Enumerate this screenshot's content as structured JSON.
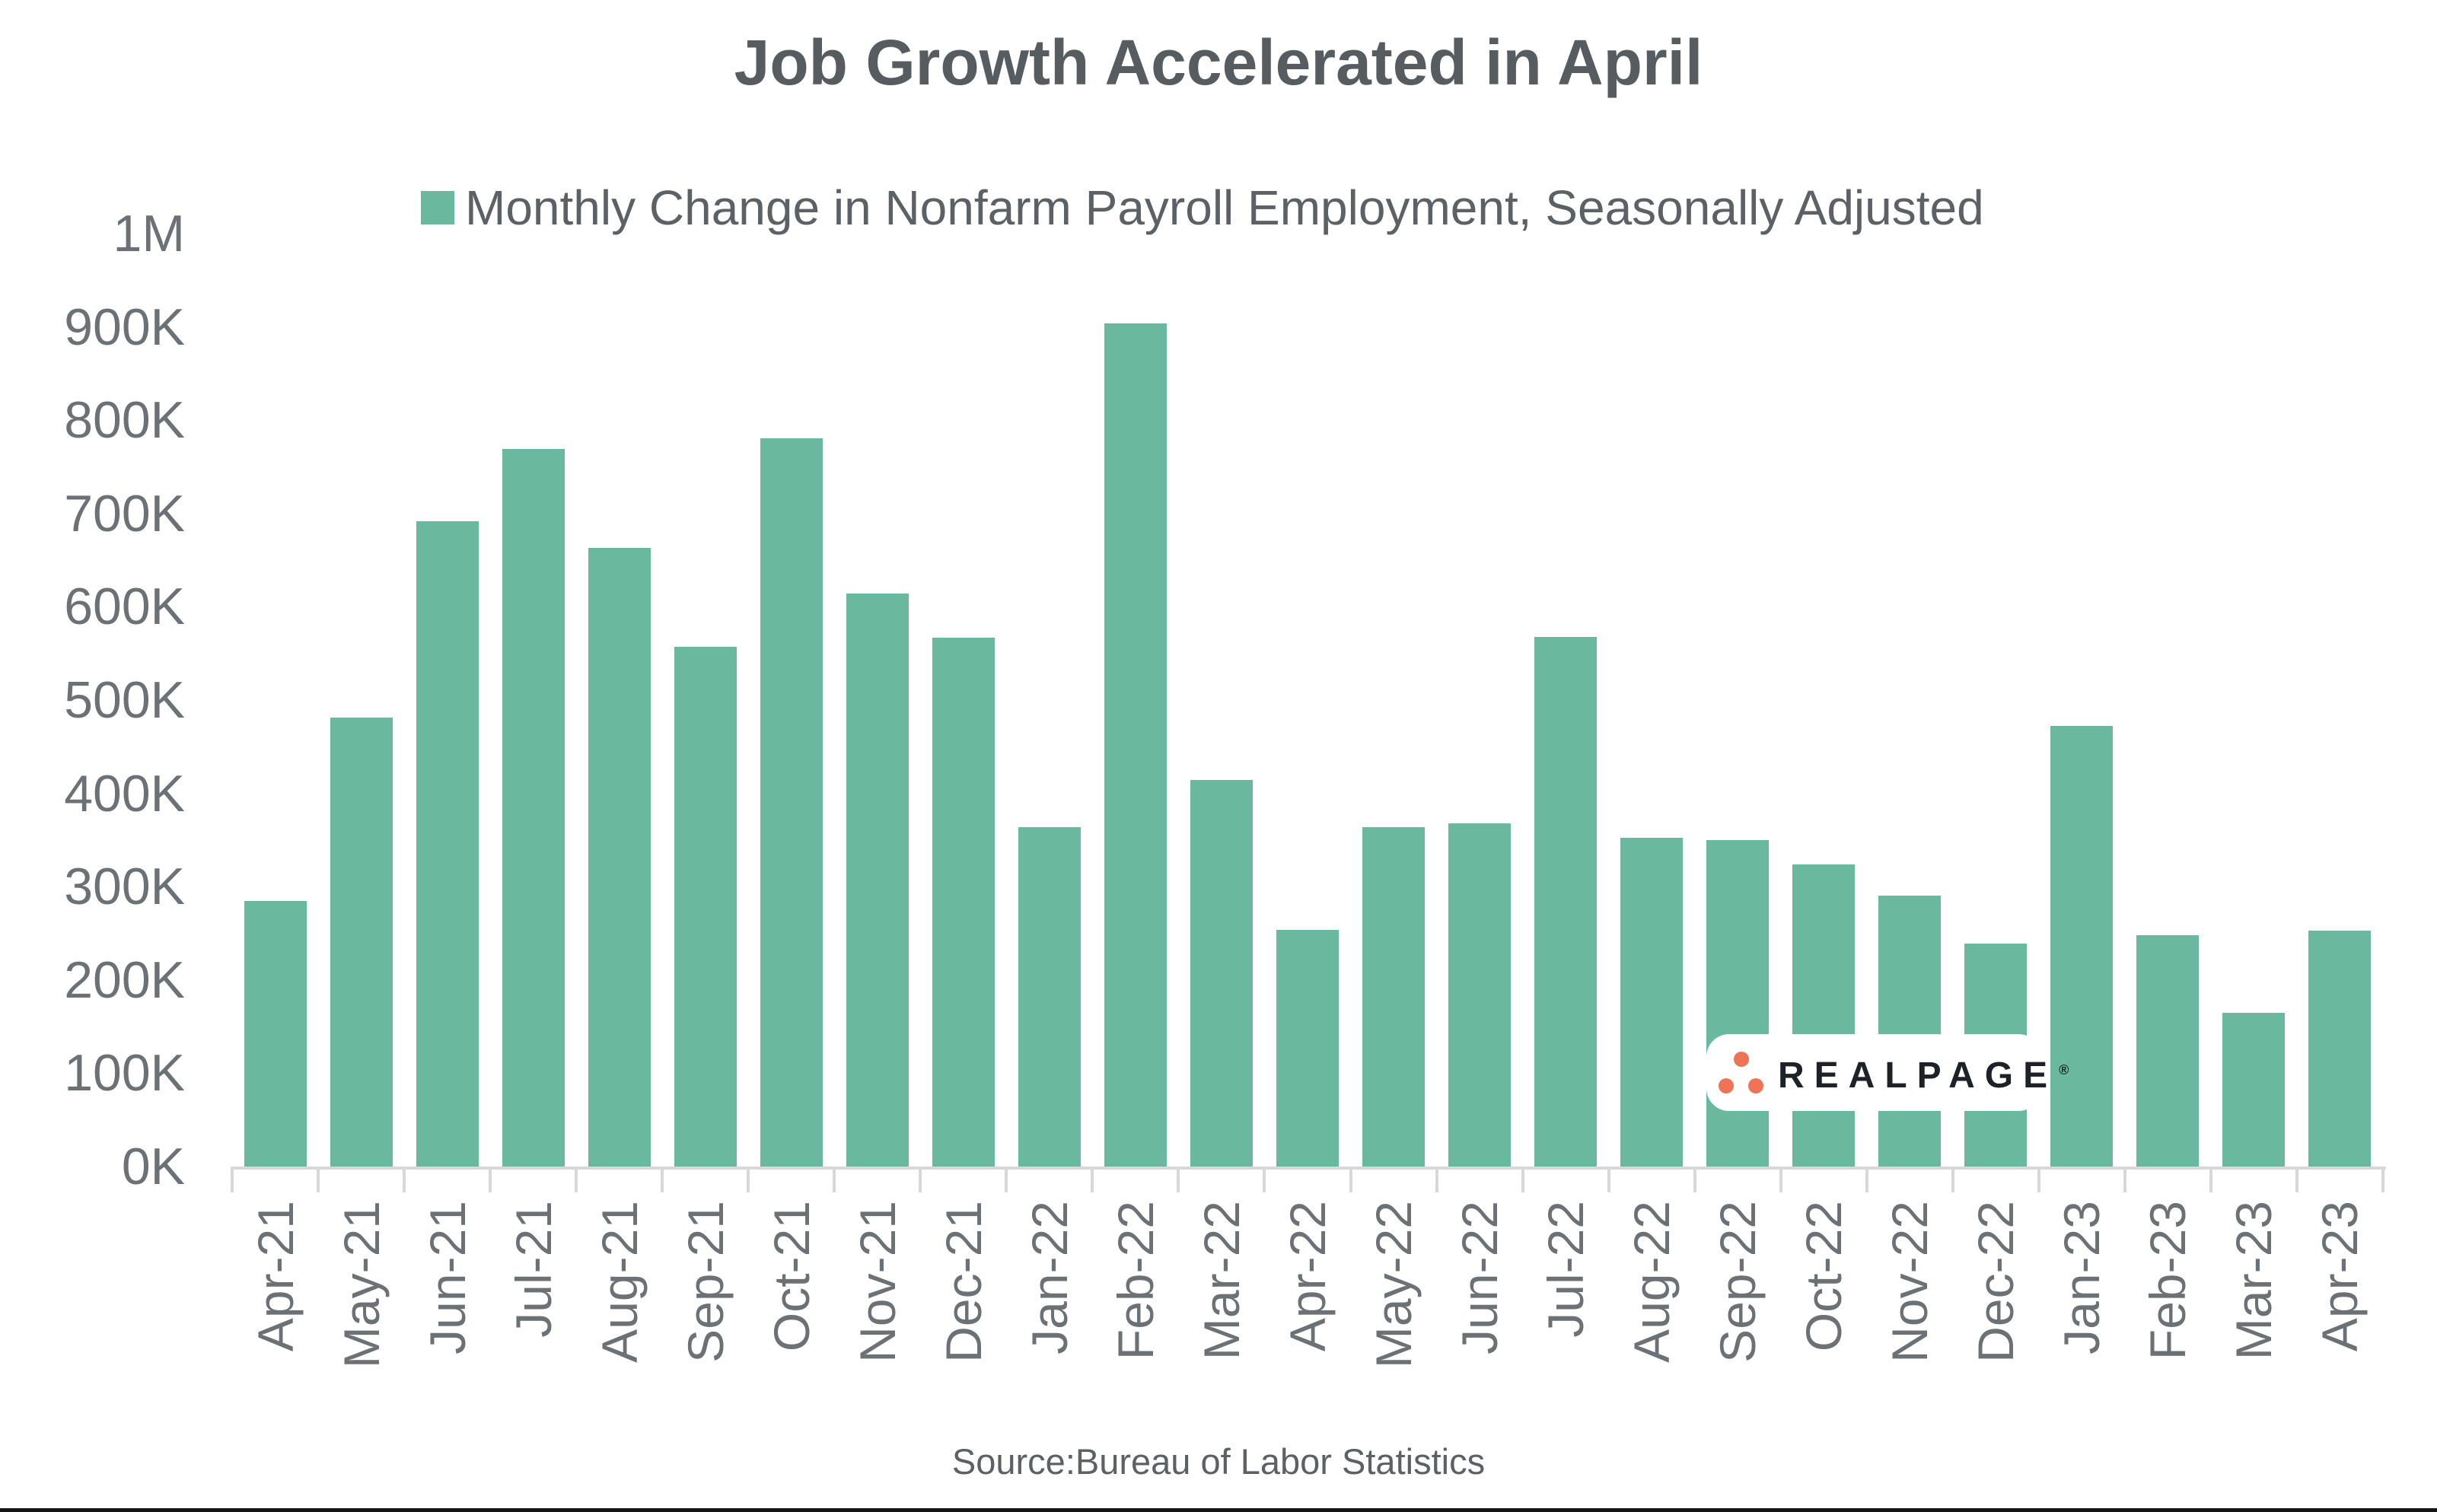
{
  "title": "Job Growth Accelerated in April",
  "legend": {
    "label": "Monthly Change in Nonfarm Payroll Employment, Seasonally Adjusted",
    "swatch_color": "#6AB89D"
  },
  "source": "Source:Bureau of Labor Statistics",
  "logo": {
    "text": "REALPAGE",
    "registered_mark": "®",
    "dot_color": "#EF7456",
    "text_color": "#1E2126"
  },
  "colors": {
    "bar_green": "#6AB89D",
    "title_grey": "#575C61",
    "axis_label_grey": "#6C7176",
    "axis_line_grey": "#D8D8D8",
    "background": "#FFFFFF",
    "bottom_strip": "#141414"
  },
  "chart_data": {
    "type": "bar",
    "title": "Job Growth Accelerated in April",
    "series_label": "Monthly Change in Nonfarm Payroll Employment, Seasonally Adjusted",
    "categories": [
      "Apr-21",
      "May-21",
      "Jun-21",
      "Jul-21",
      "Aug-21",
      "Sep-21",
      "Oct-21",
      "Nov-21",
      "Dec-21",
      "Jan-22",
      "Feb-22",
      "Mar-22",
      "Apr-22",
      "May-22",
      "Jun-22",
      "Jul-22",
      "Aug-22",
      "Sep-22",
      "Oct-22",
      "Nov-22",
      "Dec-22",
      "Jan-23",
      "Feb-23",
      "Mar-23",
      "Apr-23"
    ],
    "values_thousands": [
      285,
      481,
      692,
      769,
      663,
      557,
      781,
      614,
      567,
      364,
      904,
      414,
      254,
      364,
      368,
      568,
      352,
      350,
      324,
      290,
      239,
      472,
      248,
      165,
      253
    ],
    "y_tick_labels": [
      "0K",
      "100K",
      "200K",
      "300K",
      "400K",
      "500K",
      "600K",
      "700K",
      "800K",
      "900K",
      "1M"
    ],
    "ylim": [
      0,
      1000000
    ],
    "grid": false,
    "legend_position": "top-center",
    "xlabel": "",
    "ylabel": "",
    "source": "Source:Bureau of Labor Statistics"
  }
}
